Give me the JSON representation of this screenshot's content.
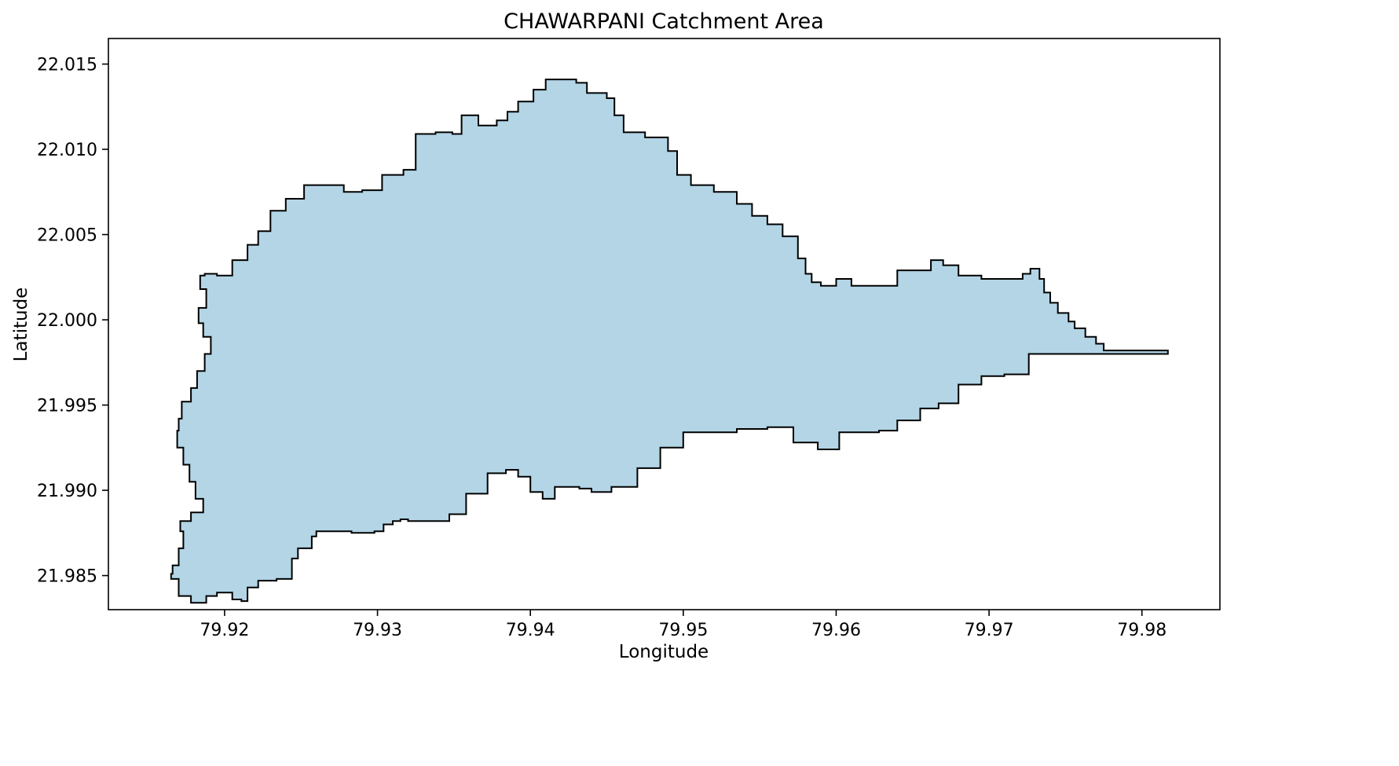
{
  "chart_data": {
    "type": "area",
    "title": "CHAWARPANI Catchment Area",
    "xlabel": "Longitude",
    "ylabel": "Latitude",
    "xlim": [
      79.9124,
      79.9851
    ],
    "ylim": [
      21.983,
      22.0165
    ],
    "xticks": [
      79.92,
      79.93,
      79.94,
      79.95,
      79.96,
      79.97,
      79.98
    ],
    "xtick_labels": [
      "79.92",
      "79.93",
      "79.94",
      "79.95",
      "79.96",
      "79.97",
      "79.98"
    ],
    "yticks": [
      21.985,
      21.99,
      21.995,
      22.0,
      22.005,
      22.01,
      22.015
    ],
    "ytick_labels": [
      "21.985",
      "21.990",
      "21.995",
      "22.000",
      "22.005",
      "22.010",
      "22.015"
    ],
    "grid": false,
    "fill_color": "#b3d5e6",
    "edge_color": "#000000",
    "series": [
      {
        "boundary": [
          [
            79.9165,
            21.9848
          ],
          [
            79.917,
            21.9838
          ],
          [
            79.9178,
            21.9834
          ],
          [
            79.9184,
            21.9834
          ],
          [
            79.9188,
            21.9838
          ],
          [
            79.9195,
            21.984
          ],
          [
            79.9205,
            21.9836
          ],
          [
            79.9211,
            21.9835
          ],
          [
            79.9215,
            21.9843
          ],
          [
            79.9222,
            21.9847
          ],
          [
            79.9234,
            21.9848
          ],
          [
            79.9244,
            21.986
          ],
          [
            79.9248,
            21.9866
          ],
          [
            79.9257,
            21.9873
          ],
          [
            79.926,
            21.9876
          ],
          [
            79.9276,
            21.9876
          ],
          [
            79.9283,
            21.9875
          ],
          [
            79.9298,
            21.9876
          ],
          [
            79.9304,
            21.988
          ],
          [
            79.931,
            21.9882
          ],
          [
            79.9315,
            21.9883
          ],
          [
            79.932,
            21.9882
          ],
          [
            79.9334,
            21.9882
          ],
          [
            79.9347,
            21.9886
          ],
          [
            79.9358,
            21.9898
          ],
          [
            79.9372,
            21.991
          ],
          [
            79.9378,
            21.991
          ],
          [
            79.9384,
            21.9912
          ],
          [
            79.9392,
            21.9908
          ],
          [
            79.94,
            21.9899
          ],
          [
            79.9408,
            21.9895
          ],
          [
            79.9416,
            21.9902
          ],
          [
            79.9432,
            21.9901
          ],
          [
            79.944,
            21.9899
          ],
          [
            79.9453,
            21.9902
          ],
          [
            79.947,
            21.9913
          ],
          [
            79.9485,
            21.9925
          ],
          [
            79.95,
            21.9934
          ],
          [
            79.952,
            21.9934
          ],
          [
            79.9535,
            21.9936
          ],
          [
            79.9545,
            21.9936
          ],
          [
            79.9555,
            21.9937
          ],
          [
            79.9572,
            21.9928
          ],
          [
            79.9588,
            21.9924
          ],
          [
            79.9602,
            21.9934
          ],
          [
            79.9615,
            21.9934
          ],
          [
            79.9628,
            21.9935
          ],
          [
            79.964,
            21.9941
          ],
          [
            79.9655,
            21.9948
          ],
          [
            79.9667,
            21.9951
          ],
          [
            79.968,
            21.9962
          ],
          [
            79.9695,
            21.9967
          ],
          [
            79.971,
            21.9968
          ],
          [
            79.9726,
            21.998
          ],
          [
            79.974,
            21.998
          ],
          [
            79.978,
            21.998
          ],
          [
            79.9817,
            21.998
          ],
          [
            79.9817,
            21.9982
          ],
          [
            79.9795,
            21.9982
          ],
          [
            79.9782,
            21.9982
          ],
          [
            79.9775,
            21.9986
          ],
          [
            79.977,
            21.999
          ],
          [
            79.9763,
            21.9995
          ],
          [
            79.9756,
            21.9999
          ],
          [
            79.9752,
            22.0004
          ],
          [
            79.9745,
            22.001
          ],
          [
            79.974,
            22.0016
          ],
          [
            79.9736,
            22.0024
          ],
          [
            79.9733,
            22.003
          ],
          [
            79.9727,
            22.0027
          ],
          [
            79.9722,
            22.0024
          ],
          [
            79.97,
            22.0024
          ],
          [
            79.9695,
            22.0026
          ],
          [
            79.968,
            22.0032
          ],
          [
            79.967,
            22.0035
          ],
          [
            79.9662,
            22.0029
          ],
          [
            79.964,
            22.002
          ],
          [
            79.9625,
            22.002
          ],
          [
            79.9617,
            22.002
          ],
          [
            79.961,
            22.0024
          ],
          [
            79.96,
            22.002
          ],
          [
            79.959,
            22.0022
          ],
          [
            79.9584,
            22.0027
          ],
          [
            79.958,
            22.0036
          ],
          [
            79.9575,
            22.0049
          ],
          [
            79.9565,
            22.0056
          ],
          [
            79.9555,
            22.0061
          ],
          [
            79.9545,
            22.0068
          ],
          [
            79.9535,
            22.0075
          ],
          [
            79.952,
            22.0079
          ],
          [
            79.9505,
            22.0085
          ],
          [
            79.9496,
            22.0099
          ],
          [
            79.949,
            22.0107
          ],
          [
            79.9475,
            22.011
          ],
          [
            79.9461,
            22.012
          ],
          [
            79.9455,
            22.013
          ],
          [
            79.945,
            22.0133
          ],
          [
            79.9437,
            22.0139
          ],
          [
            79.943,
            22.0141
          ],
          [
            79.942,
            22.0141
          ],
          [
            79.941,
            22.0135
          ],
          [
            79.9402,
            22.0128
          ],
          [
            79.9392,
            22.0122
          ],
          [
            79.9385,
            22.0117
          ],
          [
            79.9378,
            22.0114
          ],
          [
            79.9366,
            22.012
          ],
          [
            79.9355,
            22.0109
          ],
          [
            79.9349,
            22.011
          ],
          [
            79.9338,
            22.0109
          ],
          [
            79.9325,
            22.0088
          ],
          [
            79.9317,
            22.0085
          ],
          [
            79.9303,
            22.0076
          ],
          [
            79.929,
            22.0075
          ],
          [
            79.9278,
            22.0079
          ],
          [
            79.9268,
            22.0079
          ],
          [
            79.9252,
            22.0071
          ],
          [
            79.924,
            22.0064
          ],
          [
            79.923,
            22.0052
          ],
          [
            79.9222,
            22.0044
          ],
          [
            79.9215,
            22.0035
          ],
          [
            79.9205,
            22.0026
          ],
          [
            79.9195,
            22.0027
          ],
          [
            79.9187,
            22.0026
          ],
          [
            79.9184,
            22.0018
          ],
          [
            79.9188,
            22.0007
          ],
          [
            79.9183,
            21.9998
          ],
          [
            79.9186,
            21.999
          ],
          [
            79.9191,
            21.998
          ],
          [
            79.9187,
            21.997
          ],
          [
            79.9182,
            21.996
          ],
          [
            79.9178,
            21.9952
          ],
          [
            79.9172,
            21.9942
          ],
          [
            79.917,
            21.9935
          ],
          [
            79.9169,
            21.9925
          ],
          [
            79.9173,
            21.9915
          ],
          [
            79.9177,
            21.9905
          ],
          [
            79.9181,
            21.9895
          ],
          [
            79.9186,
            21.9887
          ],
          [
            79.9178,
            21.9882
          ],
          [
            79.9171,
            21.9876
          ],
          [
            79.9173,
            21.9866
          ],
          [
            79.917,
            21.9856
          ],
          [
            79.9166,
            21.9851
          ]
        ]
      }
    ]
  }
}
